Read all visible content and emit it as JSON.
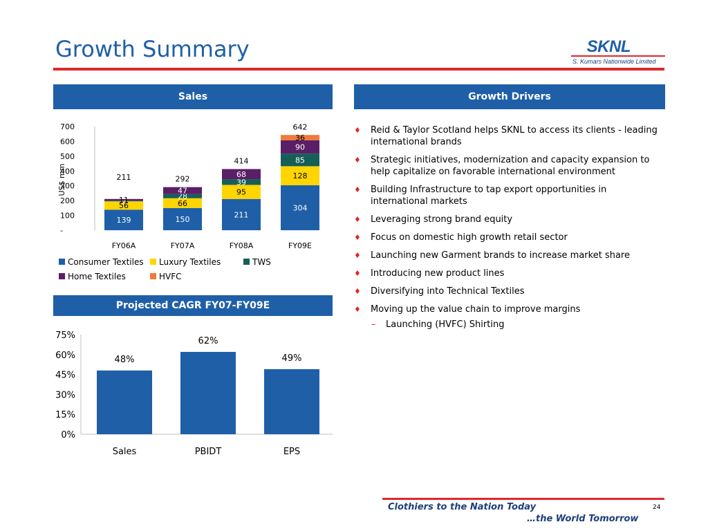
{
  "title": "Growth Summary",
  "logo": {
    "name": "SKNL",
    "subtitle": "S. Kumars Nationwide Limited"
  },
  "sales_header": "Sales",
  "drivers_header": "Growth Drivers",
  "cagr_header": "Projected CAGR FY07-FY09E",
  "colors": {
    "brand_blue": "#1f5fa8",
    "accent_red": "#e0262b",
    "consumer_textiles": "#1f5fa8",
    "luxury_textiles": "#ffd500",
    "tws": "#155f57",
    "home_textiles": "#5a1f66",
    "hvfc": "#f07a3c"
  },
  "chart_data": [
    {
      "type": "bar",
      "stacked": true,
      "title": "",
      "xlabel": "",
      "ylabel": "US$ mm",
      "categories": [
        "FY06A",
        "FY07A",
        "FY08A",
        "FY09E"
      ],
      "ylim": [
        0,
        700
      ],
      "yticks": [
        "-",
        "100",
        "200",
        "300",
        "400",
        "500",
        "600",
        "700"
      ],
      "series": [
        {
          "name": "Consumer Textiles",
          "values": [
            139,
            150,
            211,
            304
          ]
        },
        {
          "name": "Luxury Textiles",
          "values": [
            56,
            66,
            95,
            128
          ]
        },
        {
          "name": "TWS",
          "values": [
            5,
            28,
            39,
            85
          ]
        },
        {
          "name": "Home Textiles",
          "values": [
            11,
            47,
            68,
            90
          ]
        },
        {
          "name": "HVFC",
          "values": [
            0,
            0,
            0,
            36
          ]
        }
      ],
      "totals": [
        211,
        292,
        414,
        642
      ],
      "legend": "bottom"
    },
    {
      "type": "bar",
      "title": "",
      "xlabel": "",
      "ylabel": "",
      "categories": [
        "Sales",
        "PBIDT",
        "EPS"
      ],
      "values": [
        48,
        62,
        49
      ],
      "value_labels": [
        "48%",
        "62%",
        "49%"
      ],
      "ylim": [
        0,
        75
      ],
      "yticks": [
        "0%",
        "15%",
        "30%",
        "45%",
        "60%",
        "75%"
      ]
    }
  ],
  "drivers": [
    "Reid & Taylor Scotland helps SKNL to access  its clients - leading international brands",
    "Strategic initiatives, modernization and capacity expansion to help capitalize on favorable international environment",
    "Building Infrastructure to tap export opportunities in international markets",
    " Leveraging strong brand equity",
    "Focus on domestic high growth retail sector",
    "Launching new Garment brands to increase market share",
    "Introducing new product lines",
    "Diversifying into Technical Textiles",
    "Moving up the value chain to improve margins"
  ],
  "sub_driver": "Launching (HVFC) Shirting",
  "footer": {
    "line1": "Clothiers to the Nation Today",
    "line2": "…the World Tomorrow",
    "page": "24"
  }
}
